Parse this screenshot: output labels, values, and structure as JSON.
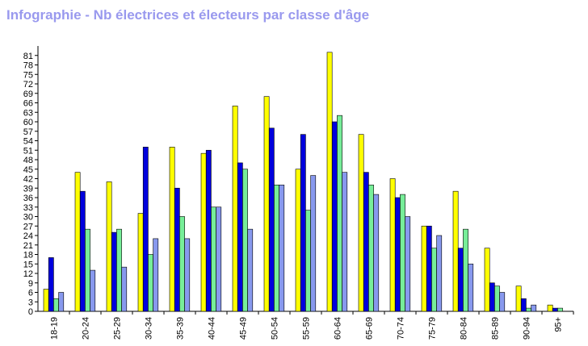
{
  "chart_data": {
    "type": "bar",
    "title": "Infographie - Nb électrices et électeurs par classe d'âge",
    "categories": [
      "18-19",
      "20-24",
      "25-29",
      "30-34",
      "35-39",
      "40-44",
      "45-49",
      "50-54",
      "55-59",
      "60-64",
      "65-69",
      "70-74",
      "75-79",
      "80-84",
      "85-89",
      "90-94",
      "95+"
    ],
    "series": [
      {
        "color": "#ffff00",
        "values": [
          7,
          44,
          41,
          31,
          52,
          50,
          65,
          68,
          45,
          82,
          56,
          42,
          27,
          38,
          20,
          8,
          2
        ]
      },
      {
        "color": "#0000dd",
        "values": [
          17,
          38,
          25,
          52,
          39,
          51,
          47,
          58,
          56,
          60,
          44,
          36,
          27,
          20,
          9,
          4,
          1
        ]
      },
      {
        "color": "#77ee99",
        "values": [
          4,
          26,
          26,
          18,
          30,
          33,
          45,
          40,
          32,
          62,
          40,
          37,
          20,
          26,
          8,
          1,
          1
        ]
      },
      {
        "color": "#8899ee",
        "values": [
          6,
          13,
          14,
          23,
          23,
          33,
          26,
          40,
          43,
          44,
          37,
          30,
          24,
          15,
          6,
          2,
          0
        ]
      }
    ],
    "ylim": [
      0,
      84
    ],
    "yticks": [
      0,
      3,
      6,
      9,
      12,
      15,
      18,
      21,
      24,
      27,
      30,
      33,
      36,
      39,
      42,
      45,
      48,
      51,
      54,
      57,
      60,
      63,
      66,
      69,
      72,
      75,
      78,
      81
    ],
    "grid": false,
    "legend": "none"
  }
}
